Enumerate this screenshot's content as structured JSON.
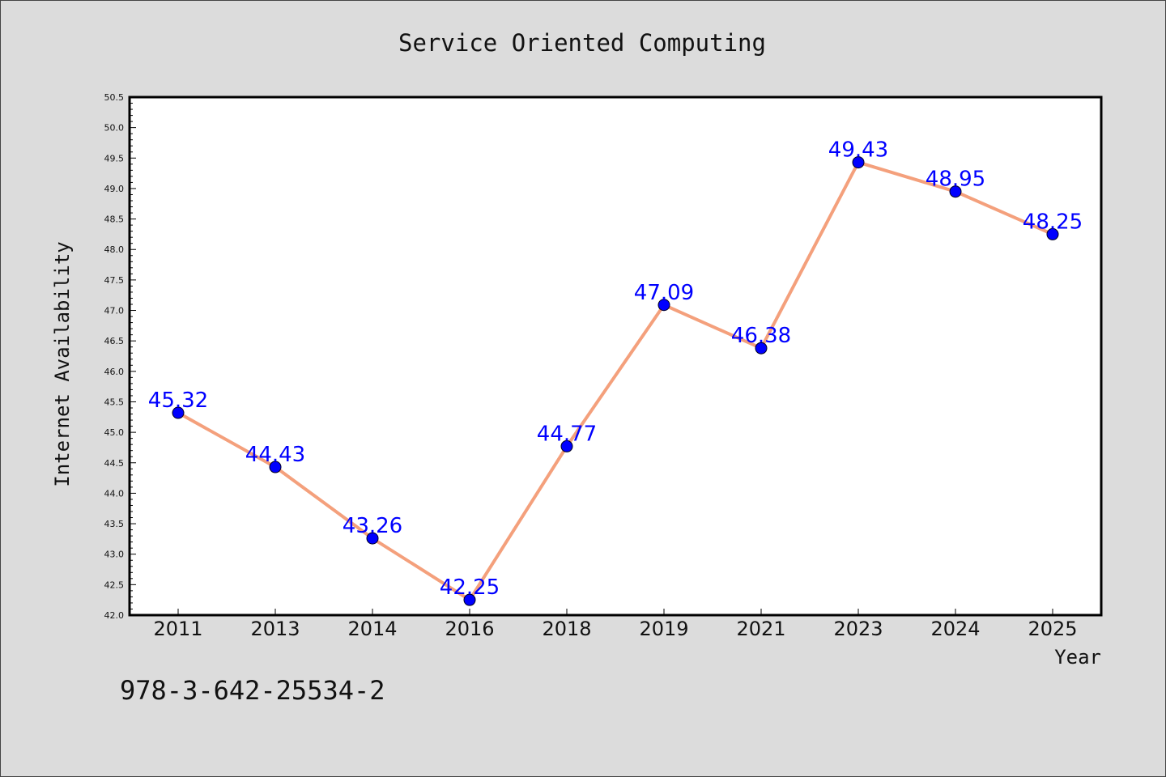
{
  "chart_data": {
    "type": "line",
    "title": "Service Oriented Computing",
    "xlabel": "Year",
    "ylabel": "Internet Availability",
    "categories": [
      "2011",
      "2013",
      "2014",
      "2016",
      "2018",
      "2019",
      "2021",
      "2023",
      "2024",
      "2025"
    ],
    "values": [
      45.32,
      44.43,
      43.26,
      42.25,
      44.77,
      47.09,
      46.38,
      49.43,
      48.95,
      48.25
    ],
    "data_labels": [
      "45.32",
      "44.43",
      "43.26",
      "42.25",
      "44.77",
      "47.09",
      "46.38",
      "49.43",
      "48.95",
      "48.25"
    ],
    "ylim": [
      42.0,
      50.5
    ],
    "yticks": [
      "42.0",
      "42.5",
      "43.0",
      "43.5",
      "44.0",
      "44.5",
      "45.0",
      "45.5",
      "46.0",
      "46.5",
      "47.0",
      "47.5",
      "48.0",
      "48.5",
      "49.0",
      "49.5",
      "50.0",
      "50.5"
    ],
    "grid": false,
    "legend": "none",
    "line_color": "#f4a07c",
    "marker_color": "#0000ff",
    "label_color": "#0000ff",
    "plot_background": "#ffffff",
    "figure_background": "#dcdcdc"
  },
  "footer": {
    "text": "978-3-642-25534-2"
  }
}
